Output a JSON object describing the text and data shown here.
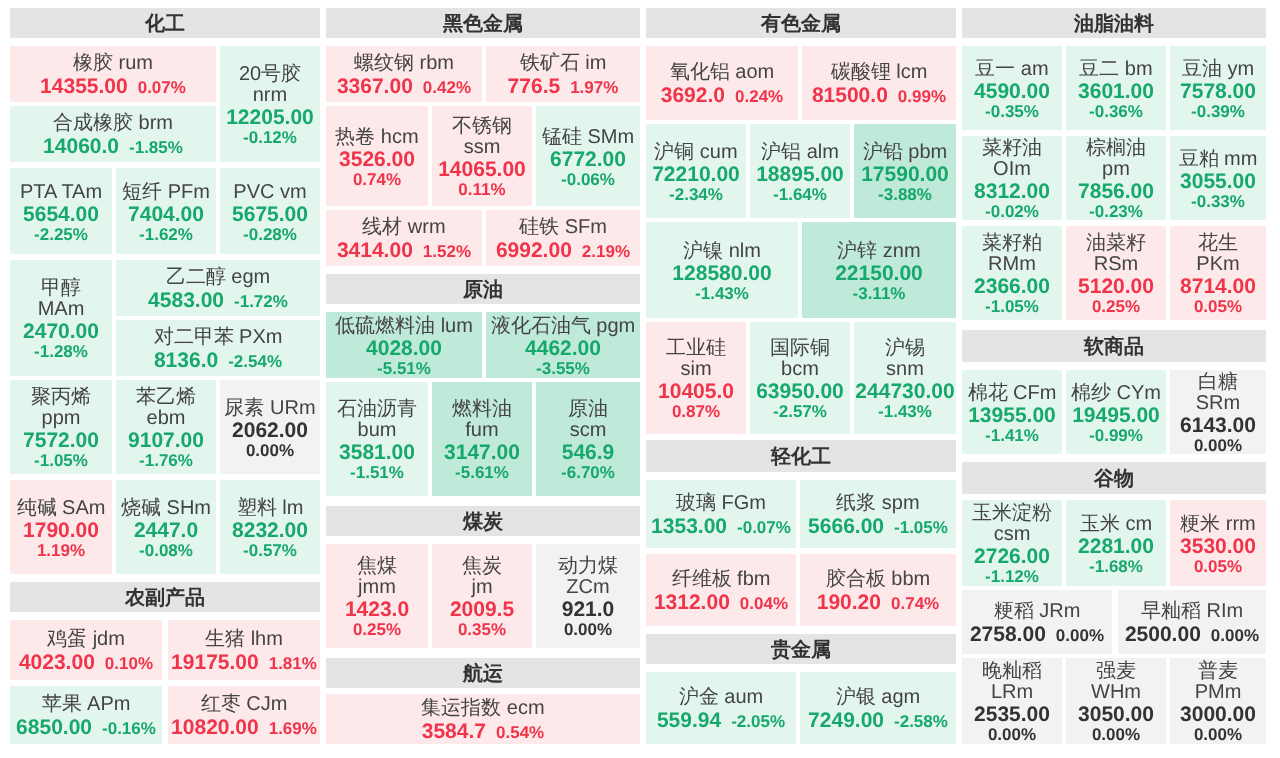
{
  "chart_data": [
    {
      "type": "other",
      "title": "化工",
      "categories": [
        "橡胶 rum",
        "20号胶 nrm",
        "合成橡胶 brm",
        "PTA TAm",
        "短纤 PFm",
        "PVC vm",
        "甲醇 MAm",
        "乙二醇 egm",
        "对二甲苯 PXm",
        "聚丙烯 ppm",
        "苯乙烯 ebm",
        "尿素 URm",
        "纯碱 SAm",
        "烧碱 SHm",
        "塑料 lm"
      ],
      "series": [
        {
          "values": [
            14355.0,
            12205.0,
            14060.0,
            5654.0,
            7404.0,
            5675.0,
            2470.0,
            4583.0,
            8136.0,
            7572.0,
            9107.0,
            2062.0,
            1790.0,
            2447.0,
            8232.0
          ],
          "value_labels": [
            "14355.00",
            "12205.00",
            "14060.0",
            "5654.00",
            "7404.00",
            "5675.00",
            "2470.00",
            "4583.00",
            "8136.0",
            "7572.00",
            "9107.00",
            "2062.00",
            "1790.00",
            "2447.0",
            "8232.00"
          ],
          "colors": [
            "#fde8ea",
            "#e3f6ee",
            "#e3f6ee",
            "#e3f6ee",
            "#e3f6ee",
            "#e3f6ee",
            "#e3f6ee",
            "#e3f6ee",
            "#e3f6ee",
            "#e3f6ee",
            "#e3f6ee",
            "#f2f2f2",
            "#fde8ea",
            "#e3f6ee",
            "#e3f6ee"
          ]
        },
        {
          "values": [
            0.07,
            -0.12,
            -1.85,
            -2.25,
            -1.62,
            -0.28,
            -1.28,
            -1.72,
            -2.54,
            -1.05,
            -1.76,
            0.0,
            1.19,
            -0.08,
            -0.57
          ],
          "value_labels": [
            "0.07%",
            "-0.12%",
            "-1.85%",
            "-2.25%",
            "-1.62%",
            "-0.28%",
            "-1.28%",
            "-1.72%",
            "-2.54%",
            "-1.05%",
            "-1.76%",
            "0.00%",
            "1.19%",
            "-0.08%",
            "-0.57%"
          ],
          "colors": [
            "#f0344a",
            "#17a86b",
            "#17a86b",
            "#17a86b",
            "#17a86b",
            "#17a86b",
            "#17a86b",
            "#17a86b",
            "#17a86b",
            "#17a86b",
            "#17a86b",
            "#333333",
            "#f0344a",
            "#17a86b",
            "#17a86b"
          ]
        }
      ]
    },
    {
      "type": "other",
      "title": "农副产品",
      "categories": [
        "鸡蛋 jdm",
        "生猪 lhm",
        "苹果 APm",
        "红枣 CJm"
      ],
      "series": [
        {
          "values": [
            4023.0,
            19175.0,
            6850.0,
            10820.0
          ],
          "value_labels": [
            "4023.00",
            "19175.00",
            "6850.00",
            "10820.00"
          ],
          "colors": [
            "#fde8ea",
            "#fde8ea",
            "#e3f6ee",
            "#fde8ea"
          ]
        },
        {
          "values": [
            0.1,
            1.81,
            -0.16,
            1.69
          ],
          "value_labels": [
            "0.10%",
            "1.81%",
            "-0.16%",
            "1.69%"
          ],
          "colors": [
            "#f0344a",
            "#f0344a",
            "#17a86b",
            "#f0344a"
          ]
        }
      ]
    },
    {
      "type": "other",
      "title": "黑色金属",
      "categories": [
        "螺纹钢 rbm",
        "铁矿石 im",
        "热卷 hcm",
        "不锈钢 ssm",
        "锰硅 SMm",
        "线材 wrm",
        "硅铁 SFm"
      ],
      "series": [
        {
          "values": [
            3367.0,
            776.5,
            3526.0,
            14065.0,
            6772.0,
            3414.0,
            6992.0
          ],
          "value_labels": [
            "3367.00",
            "776.5",
            "3526.00",
            "14065.00",
            "6772.00",
            "3414.00",
            "6992.00"
          ],
          "colors": [
            "#fde8ea",
            "#fde8ea",
            "#fde8ea",
            "#fde8ea",
            "#e3f6ee",
            "#fde8ea",
            "#fde8ea"
          ]
        },
        {
          "values": [
            0.42,
            1.97,
            0.74,
            0.11,
            -0.06,
            1.52,
            2.19
          ],
          "value_labels": [
            "0.42%",
            "1.97%",
            "0.74%",
            "0.11%",
            "-0.06%",
            "1.52%",
            "2.19%"
          ],
          "colors": [
            "#f0344a",
            "#f0344a",
            "#f0344a",
            "#f0344a",
            "#17a86b",
            "#f0344a",
            "#f0344a"
          ]
        }
      ]
    },
    {
      "type": "other",
      "title": "原油",
      "categories": [
        "低硫燃料油 lum",
        "液化石油气 pgm",
        "石油沥青 bum",
        "燃料油 fum",
        "原油 scm"
      ],
      "series": [
        {
          "values": [
            4028.0,
            4462.0,
            3581.0,
            3147.0,
            546.9
          ],
          "value_labels": [
            "4028.00",
            "4462.00",
            "3581.00",
            "3147.00",
            "546.9"
          ],
          "colors": [
            "#bfe9d9",
            "#bfe9d9",
            "#e3f6ee",
            "#bfe9d9",
            "#bfe9d9"
          ]
        },
        {
          "values": [
            -5.51,
            -3.55,
            -1.51,
            -5.61,
            -6.7
          ],
          "value_labels": [
            "-5.51%",
            "-3.55%",
            "-1.51%",
            "-5.61%",
            "-6.70%"
          ],
          "colors": [
            "#17a86b",
            "#17a86b",
            "#17a86b",
            "#17a86b",
            "#17a86b"
          ]
        }
      ]
    },
    {
      "type": "other",
      "title": "煤炭",
      "categories": [
        "焦煤 jmm",
        "焦炭 jm",
        "动力煤 ZCm"
      ],
      "series": [
        {
          "values": [
            1423.0,
            2009.5,
            921.0
          ],
          "value_labels": [
            "1423.0",
            "2009.5",
            "921.0"
          ],
          "colors": [
            "#fde8ea",
            "#fde8ea",
            "#f2f2f2"
          ]
        },
        {
          "values": [
            0.25,
            0.35,
            0.0
          ],
          "value_labels": [
            "0.25%",
            "0.35%",
            "0.00%"
          ],
          "colors": [
            "#f0344a",
            "#f0344a",
            "#333333"
          ]
        }
      ]
    },
    {
      "type": "other",
      "title": "航运",
      "categories": [
        "集运指数 ecm"
      ],
      "series": [
        {
          "values": [
            3584.7
          ],
          "value_labels": [
            "3584.7"
          ],
          "colors": [
            "#fde8ea"
          ]
        },
        {
          "values": [
            0.54
          ],
          "value_labels": [
            "0.54%"
          ],
          "colors": [
            "#f0344a"
          ]
        }
      ]
    },
    {
      "type": "other",
      "title": "有色金属",
      "categories": [
        "氧化铝 aom",
        "碳酸锂 lcm",
        "沪铜 cum",
        "沪铝 alm",
        "沪铅 pbm",
        "沪镍 nlm",
        "沪锌 znm",
        "工业硅 sim",
        "国际铜 bcm",
        "沪锡 snm"
      ],
      "series": [
        {
          "values": [
            3692.0,
            81500.0,
            72210.0,
            18895.0,
            17590.0,
            128580.0,
            22150.0,
            10405.0,
            63950.0,
            244730.0
          ],
          "value_labels": [
            "3692.0",
            "81500.0",
            "72210.00",
            "18895.00",
            "17590.00",
            "128580.00",
            "22150.00",
            "10405.0",
            "63950.00",
            "244730.00"
          ],
          "colors": [
            "#fde8ea",
            "#fde8ea",
            "#e3f6ee",
            "#e3f6ee",
            "#bfe9d9",
            "#e3f6ee",
            "#bfe9d9",
            "#fde8ea",
            "#e3f6ee",
            "#e3f6ee"
          ]
        },
        {
          "values": [
            0.24,
            0.99,
            -2.34,
            -1.64,
            -3.88,
            -1.43,
            -3.11,
            0.87,
            -2.57,
            -1.43
          ],
          "value_labels": [
            "0.24%",
            "0.99%",
            "-2.34%",
            "-1.64%",
            "-3.88%",
            "-1.43%",
            "-3.11%",
            "0.87%",
            "-2.57%",
            "-1.43%"
          ],
          "colors": [
            "#f0344a",
            "#f0344a",
            "#17a86b",
            "#17a86b",
            "#17a86b",
            "#17a86b",
            "#17a86b",
            "#f0344a",
            "#17a86b",
            "#17a86b"
          ]
        }
      ]
    },
    {
      "type": "other",
      "title": "轻化工",
      "categories": [
        "玻璃 FGm",
        "纸浆 spm",
        "纤维板 fbm",
        "胶合板 bbm"
      ],
      "series": [
        {
          "values": [
            1353.0,
            5666.0,
            1312.0,
            190.2
          ],
          "value_labels": [
            "1353.00",
            "5666.00",
            "1312.00",
            "190.20"
          ],
          "colors": [
            "#e3f6ee",
            "#e3f6ee",
            "#fde8ea",
            "#fde8ea"
          ]
        },
        {
          "values": [
            -0.07,
            -1.05,
            0.04,
            0.74
          ],
          "value_labels": [
            "-0.07%",
            "-1.05%",
            "0.04%",
            "0.74%"
          ],
          "colors": [
            "#17a86b",
            "#17a86b",
            "#f0344a",
            "#f0344a"
          ]
        }
      ]
    },
    {
      "type": "other",
      "title": "贵金属",
      "categories": [
        "沪金 aum",
        "沪银 agm"
      ],
      "series": [
        {
          "values": [
            559.94,
            7249.0
          ],
          "value_labels": [
            "559.94",
            "7249.00"
          ],
          "colors": [
            "#e3f6ee",
            "#e3f6ee"
          ]
        },
        {
          "values": [
            -2.05,
            -2.58
          ],
          "value_labels": [
            "-2.05%",
            "-2.58%"
          ],
          "colors": [
            "#17a86b",
            "#17a86b"
          ]
        }
      ]
    },
    {
      "type": "other",
      "title": "油脂油料",
      "categories": [
        "豆一 am",
        "豆二 bm",
        "豆油 ym",
        "菜籽油 OIm",
        "棕榈油 pm",
        "豆粕 mm",
        "菜籽粕 RMm",
        "油菜籽 RSm",
        "花生 PKm"
      ],
      "series": [
        {
          "values": [
            4590.0,
            3601.0,
            7578.0,
            8312.0,
            7856.0,
            3055.0,
            2366.0,
            5120.0,
            8714.0
          ],
          "value_labels": [
            "4590.00",
            "3601.00",
            "7578.00",
            "8312.00",
            "7856.00",
            "3055.00",
            "2366.00",
            "5120.00",
            "8714.00"
          ],
          "colors": [
            "#e3f6ee",
            "#e3f6ee",
            "#e3f6ee",
            "#e3f6ee",
            "#e3f6ee",
            "#e3f6ee",
            "#e3f6ee",
            "#fde8ea",
            "#fde8ea"
          ]
        },
        {
          "values": [
            -0.35,
            -0.36,
            -0.39,
            -0.02,
            -0.23,
            -0.33,
            -1.05,
            0.25,
            0.05
          ],
          "value_labels": [
            "-0.35%",
            "-0.36%",
            "-0.39%",
            "-0.02%",
            "-0.23%",
            "-0.33%",
            "-1.05%",
            "0.25%",
            "0.05%"
          ],
          "colors": [
            "#17a86b",
            "#17a86b",
            "#17a86b",
            "#17a86b",
            "#17a86b",
            "#17a86b",
            "#17a86b",
            "#f0344a",
            "#f0344a"
          ]
        }
      ]
    },
    {
      "type": "other",
      "title": "软商品",
      "categories": [
        "棉花 CFm",
        "棉纱 CYm",
        "白糖 SRm"
      ],
      "series": [
        {
          "values": [
            13955.0,
            19495.0,
            6143.0
          ],
          "value_labels": [
            "13955.00",
            "19495.00",
            "6143.00"
          ],
          "colors": [
            "#e3f6ee",
            "#e3f6ee",
            "#f2f2f2"
          ]
        },
        {
          "values": [
            -1.41,
            -0.99,
            0.0
          ],
          "value_labels": [
            "-1.41%",
            "-0.99%",
            "0.00%"
          ],
          "colors": [
            "#17a86b",
            "#17a86b",
            "#333333"
          ]
        }
      ]
    },
    {
      "type": "other",
      "title": "谷物",
      "categories": [
        "玉米淀粉 csm",
        "玉米 cm",
        "粳米 rrm",
        "粳稻 JRm",
        "早籼稻 RIm",
        "晚籼稻 LRm",
        "强麦 WHm",
        "普麦 PMm"
      ],
      "series": [
        {
          "values": [
            2726.0,
            2281.0,
            3530.0,
            2758.0,
            2500.0,
            2535.0,
            3050.0,
            3000.0
          ],
          "value_labels": [
            "2726.00",
            "2281.00",
            "3530.00",
            "2758.00",
            "2500.00",
            "2535.00",
            "3050.00",
            "3000.00"
          ],
          "colors": [
            "#e3f6ee",
            "#e3f6ee",
            "#fde8ea",
            "#f2f2f2",
            "#f2f2f2",
            "#f2f2f2",
            "#f2f2f2",
            "#f2f2f2"
          ]
        },
        {
          "values": [
            -1.12,
            -1.68,
            0.05,
            0.0,
            0.0,
            0.0,
            0.0,
            0.0
          ],
          "value_labels": [
            "-1.12%",
            "-1.68%",
            "0.05%",
            "0.00%",
            "0.00%",
            "0.00%",
            "0.00%",
            "0.00%"
          ],
          "colors": [
            "#17a86b",
            "#17a86b",
            "#f0344a",
            "#333333",
            "#333333",
            "#333333",
            "#333333",
            "#333333"
          ]
        }
      ]
    }
  ]
}
